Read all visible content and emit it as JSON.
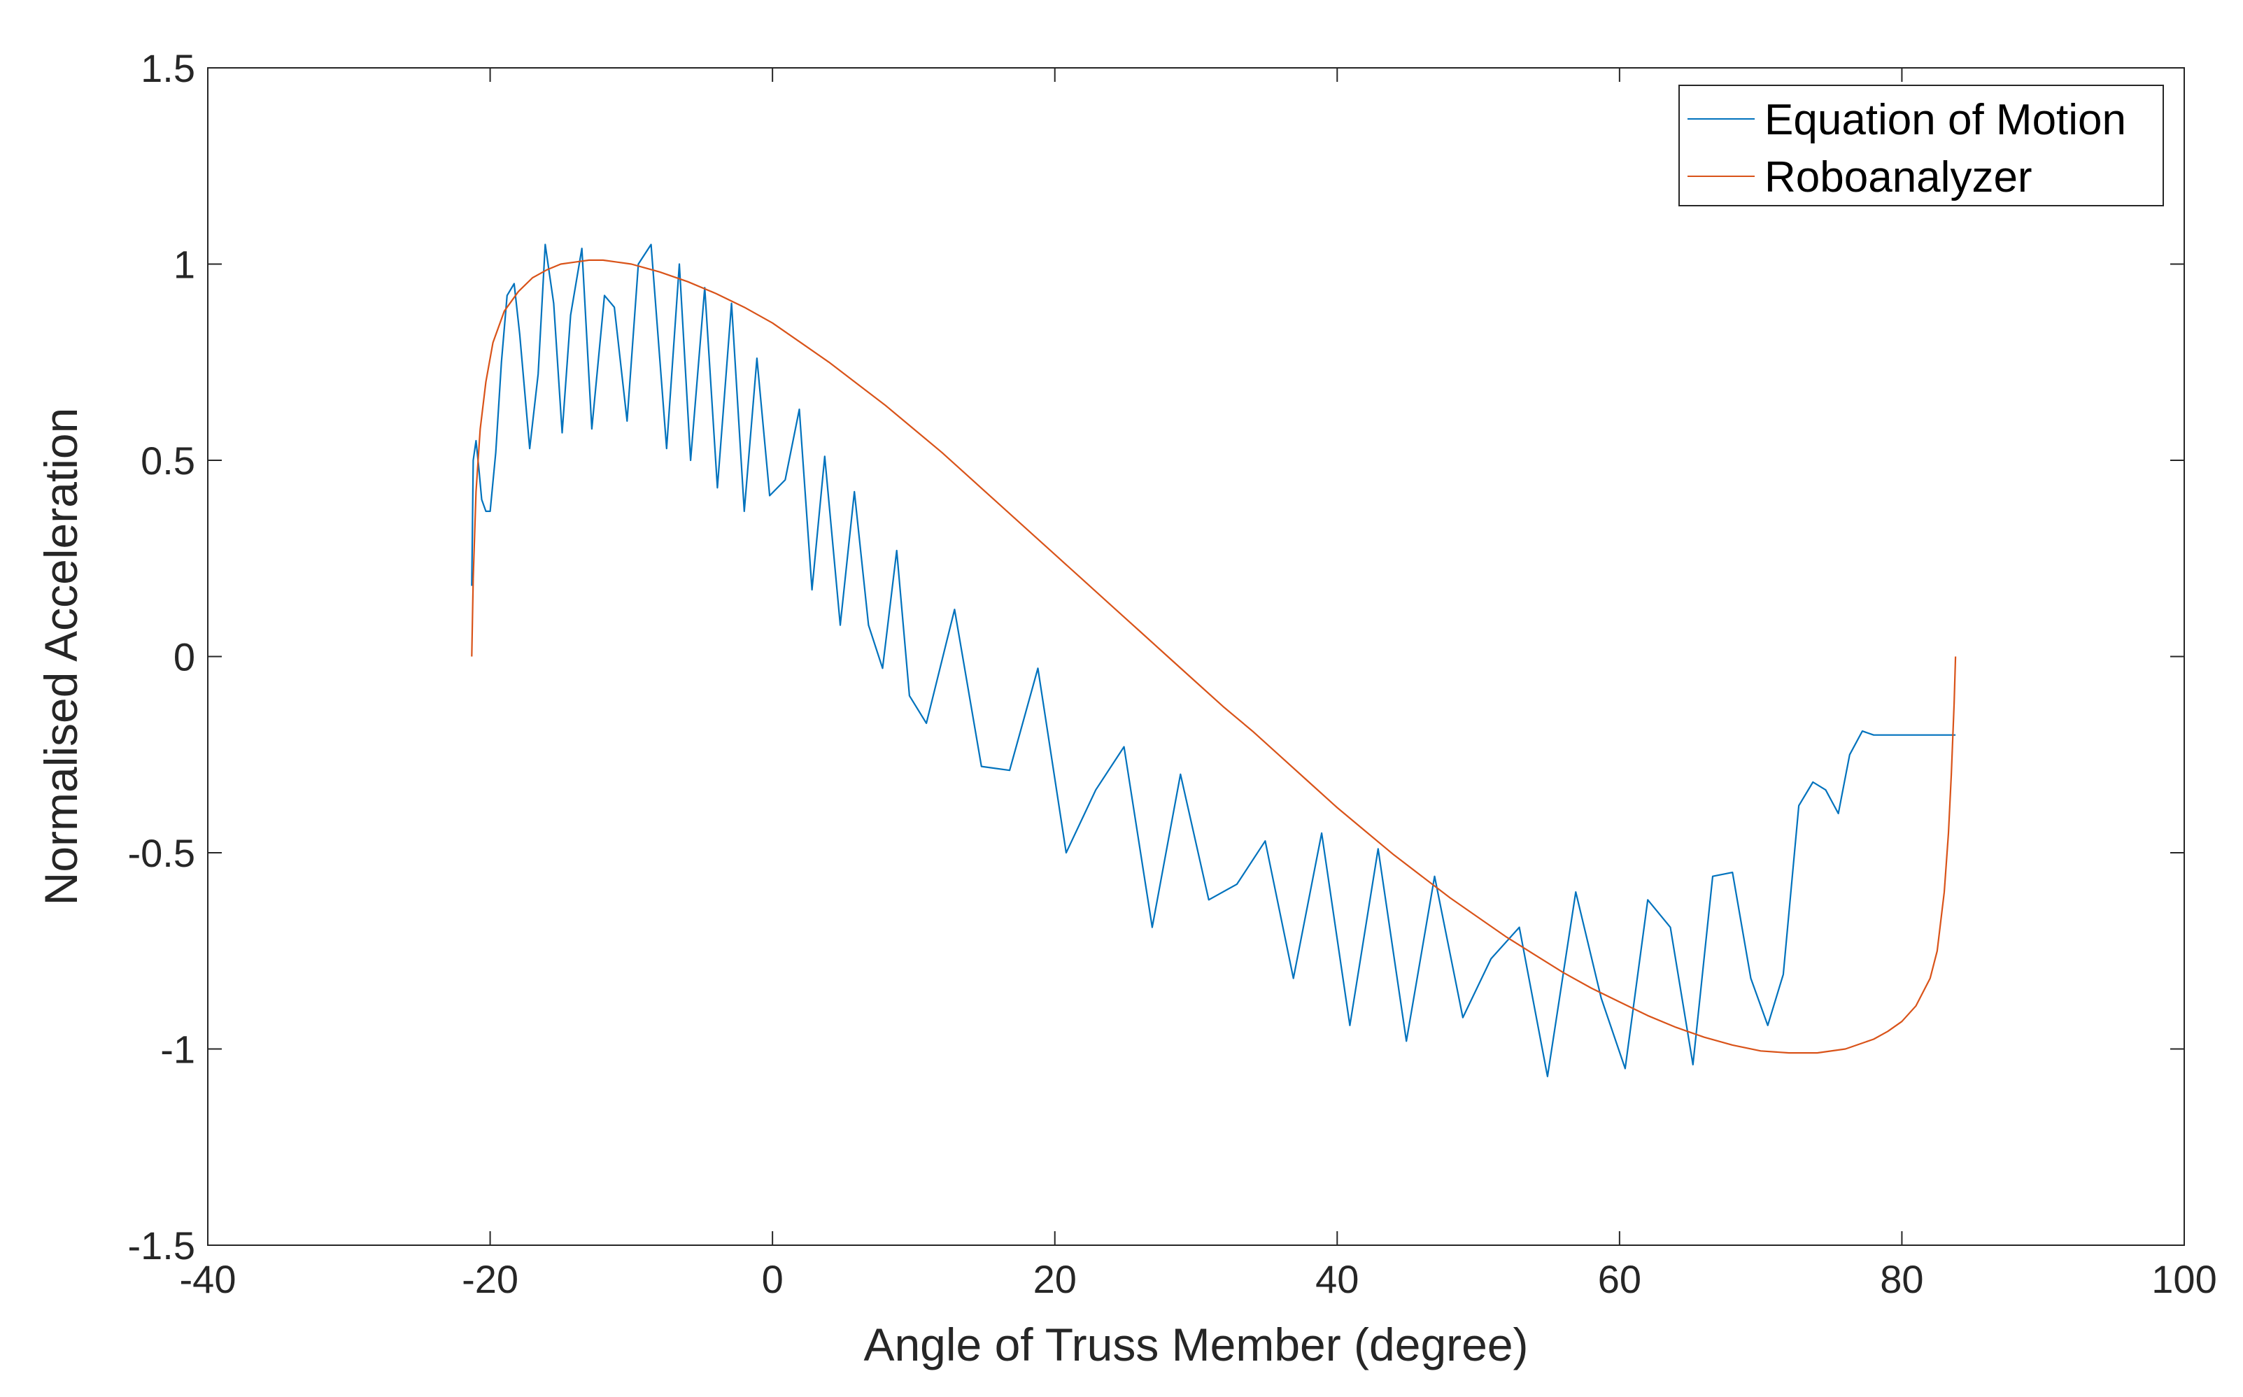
{
  "chart_data": {
    "type": "line",
    "xlabel": "Angle of Truss Member (degree)",
    "ylabel": "Normalised Acceleration",
    "xlim": [
      -40,
      100
    ],
    "ylim": [
      -1.5,
      1.5
    ],
    "xticks": [
      -40,
      -20,
      0,
      20,
      40,
      60,
      80,
      100
    ],
    "yticks": [
      -1.5,
      -1,
      -0.5,
      0,
      0.5,
      1,
      1.5
    ],
    "xtick_labels": [
      "-40",
      "-20",
      "0",
      "20",
      "40",
      "60",
      "80",
      "100"
    ],
    "ytick_labels": [
      "-1.5",
      "-1",
      "-0.5",
      "0",
      "0.5",
      "1",
      "1.5"
    ],
    "grid": false,
    "legend_position": "top-right",
    "colors": {
      "equation": "#0072BD",
      "robo": "#D95319",
      "axes": "#262626"
    },
    "series": [
      {
        "name": "Equation of Motion",
        "color": "#0072BD",
        "x": [
          -21.3,
          -21.2,
          -21.0,
          -20.8,
          -20.6,
          -20.3,
          -20.0,
          -19.6,
          -19.2,
          -18.8,
          -18.3,
          -17.9,
          -17.2,
          -16.6,
          -16.1,
          -15.5,
          -14.9,
          -14.3,
          -13.5,
          -12.8,
          -11.9,
          -11.2,
          -10.3,
          -9.5,
          -8.6,
          -7.5,
          -6.6,
          -5.8,
          -4.8,
          -3.9,
          -2.9,
          -2.0,
          -1.1,
          -0.2,
          0.9,
          1.9,
          2.8,
          3.7,
          4.8,
          5.8,
          6.8,
          7.8,
          8.8,
          9.7,
          10.9,
          12.9,
          14.8,
          16.8,
          18.8,
          20.8,
          22.9,
          24.9,
          26.9,
          28.9,
          30.9,
          32.9,
          34.9,
          36.9,
          38.9,
          40.9,
          42.9,
          44.9,
          46.9,
          48.9,
          50.9,
          52.9,
          54.9,
          56.9,
          58.7,
          60.4,
          62.0,
          63.6,
          65.2,
          66.6,
          68.0,
          69.3,
          70.5,
          71.6,
          72.7,
          73.7,
          74.6,
          75.5,
          76.3,
          77.2,
          78.0,
          78.7,
          79.4,
          80.0,
          80.6,
          81.2,
          81.7,
          82.1,
          82.5,
          82.8,
          83.1,
          83.4,
          83.6,
          83.7,
          83.8
        ],
        "y": [
          0.18,
          0.5,
          0.55,
          0.48,
          0.4,
          0.37,
          0.37,
          0.52,
          0.75,
          0.92,
          0.95,
          0.82,
          0.53,
          0.72,
          1.05,
          0.9,
          0.57,
          0.87,
          1.04,
          0.58,
          0.92,
          0.89,
          0.6,
          1.0,
          1.05,
          0.53,
          1.0,
          0.5,
          0.94,
          0.43,
          0.9,
          0.37,
          0.76,
          0.41,
          0.45,
          0.63,
          0.17,
          0.51,
          0.08,
          0.42,
          0.08,
          -0.03,
          0.27,
          -0.1,
          -0.17,
          0.12,
          -0.28,
          -0.29,
          -0.03,
          -0.5,
          -0.34,
          -0.23,
          -0.69,
          -0.3,
          -0.62,
          -0.58,
          -0.47,
          -0.82,
          -0.45,
          -0.94,
          -0.49,
          -0.98,
          -0.56,
          -0.92,
          -0.77,
          -0.69,
          -1.07,
          -0.6,
          -0.87,
          -1.05,
          -0.62,
          -0.69,
          -1.04,
          -0.56,
          -0.55,
          -0.82,
          -0.94,
          -0.81,
          -0.38,
          -0.32,
          -0.34,
          -0.4,
          -0.25,
          -0.19,
          -0.2,
          -0.2,
          -0.2,
          -0.2,
          -0.2,
          -0.2,
          -0.2,
          -0.2,
          -0.2,
          -0.2,
          -0.2,
          -0.2,
          -0.2,
          -0.2,
          -0.2
        ]
      },
      {
        "name": "Roboanalyzer",
        "color": "#D95319",
        "x": [
          -21.3,
          -21.2,
          -21.0,
          -20.7,
          -20.3,
          -19.8,
          -19.0,
          -18.0,
          -17.0,
          -16.0,
          -15.0,
          -14.0,
          -13.0,
          -12.0,
          -11.0,
          -10.0,
          -8.0,
          -6.0,
          -4.0,
          -2.0,
          0.0,
          2.0,
          4.0,
          6.0,
          8.0,
          10.0,
          12.0,
          14.0,
          16.0,
          18.0,
          20.0,
          22.0,
          24.0,
          26.0,
          28.0,
          30.0,
          32.0,
          34.0,
          36.0,
          38.0,
          40.0,
          42.0,
          44.0,
          46.0,
          48.0,
          50.0,
          52.0,
          54.0,
          56.0,
          58.0,
          60.0,
          62.0,
          64.0,
          66.0,
          68.0,
          70.0,
          72.0,
          74.0,
          76.0,
          78.0,
          79.0,
          80.0,
          81.0,
          82.0,
          82.5,
          83.0,
          83.3,
          83.5,
          83.7,
          83.8
        ],
        "y": [
          0.0,
          0.2,
          0.42,
          0.58,
          0.7,
          0.8,
          0.88,
          0.93,
          0.965,
          0.985,
          1.0,
          1.005,
          1.01,
          1.01,
          1.005,
          1.0,
          0.98,
          0.955,
          0.925,
          0.89,
          0.85,
          0.8,
          0.75,
          0.695,
          0.64,
          0.58,
          0.52,
          0.455,
          0.39,
          0.325,
          0.26,
          0.195,
          0.13,
          0.065,
          0.0,
          -0.065,
          -0.13,
          -0.19,
          -0.255,
          -0.32,
          -0.385,
          -0.445,
          -0.505,
          -0.56,
          -0.615,
          -0.665,
          -0.715,
          -0.76,
          -0.805,
          -0.845,
          -0.88,
          -0.915,
          -0.945,
          -0.97,
          -0.99,
          -1.005,
          -1.01,
          -1.01,
          -1.0,
          -0.975,
          -0.955,
          -0.93,
          -0.89,
          -0.82,
          -0.75,
          -0.6,
          -0.45,
          -0.3,
          -0.12,
          0.0
        ]
      }
    ]
  }
}
